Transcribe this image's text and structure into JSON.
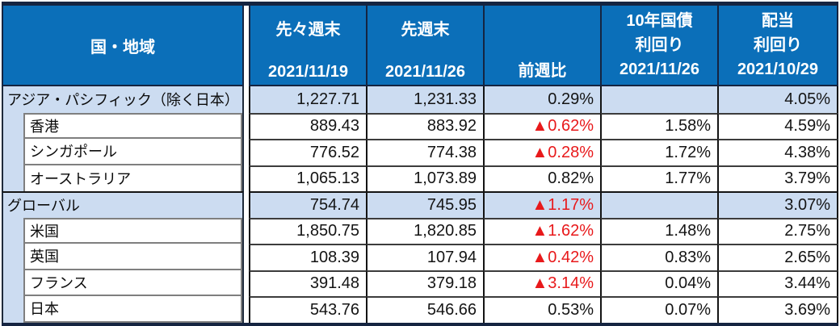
{
  "table": {
    "columns": [
      {
        "label": "国・地域"
      },
      {
        "label": "先々週末",
        "date": "2021/11/19"
      },
      {
        "label": "先週末",
        "date": "2021/11/26"
      },
      {
        "label": "前週比"
      },
      {
        "label": "10年国債",
        "label2": "利回り",
        "date": "2021/11/26"
      },
      {
        "label": "配当",
        "label2": "利回り",
        "date": "2021/10/29"
      }
    ],
    "rows": [
      {
        "type": "section",
        "name": "アジア・パシフィック（除く日本）",
        "week_before_last": "1,227.71",
        "last_week": "1,231.33",
        "week_over_week": "0.29%",
        "week_over_week_negative": false,
        "bond_yield_10y": "",
        "dividend_yield": "4.05%"
      },
      {
        "type": "sub",
        "name": "香港",
        "week_before_last": "889.43",
        "last_week": "883.92",
        "week_over_week": "▲0.62%",
        "week_over_week_negative": true,
        "bond_yield_10y": "1.58%",
        "dividend_yield": "4.59%"
      },
      {
        "type": "sub",
        "name": "シンガポール",
        "week_before_last": "776.52",
        "last_week": "774.38",
        "week_over_week": "▲0.28%",
        "week_over_week_negative": true,
        "bond_yield_10y": "1.72%",
        "dividend_yield": "4.38%"
      },
      {
        "type": "sub",
        "name": "オーストラリア",
        "week_before_last": "1,065.13",
        "last_week": "1,073.89",
        "week_over_week": "0.82%",
        "week_over_week_negative": false,
        "bond_yield_10y": "1.77%",
        "dividend_yield": "3.79%"
      },
      {
        "type": "section",
        "name": "グローバル",
        "week_before_last": "754.74",
        "last_week": "745.95",
        "week_over_week": "▲1.17%",
        "week_over_week_negative": true,
        "bond_yield_10y": "",
        "dividend_yield": "3.07%"
      },
      {
        "type": "sub",
        "name": "米国",
        "week_before_last": "1,850.75",
        "last_week": "1,820.85",
        "week_over_week": "▲1.62%",
        "week_over_week_negative": true,
        "bond_yield_10y": "1.48%",
        "dividend_yield": "2.75%"
      },
      {
        "type": "sub",
        "name": "英国",
        "week_before_last": "108.39",
        "last_week": "107.94",
        "week_over_week": "▲0.42%",
        "week_over_week_negative": true,
        "bond_yield_10y": "0.83%",
        "dividend_yield": "2.65%"
      },
      {
        "type": "sub",
        "name": "フランス",
        "week_before_last": "391.48",
        "last_week": "379.18",
        "week_over_week": "▲3.14%",
        "week_over_week_negative": true,
        "bond_yield_10y": "0.04%",
        "dividend_yield": "3.44%"
      },
      {
        "type": "sub",
        "name": "日本",
        "week_before_last": "543.76",
        "last_week": "546.66",
        "week_over_week": "0.53%",
        "week_over_week_negative": false,
        "bond_yield_10y": "0.07%",
        "dividend_yield": "3.69%"
      }
    ]
  },
  "colors": {
    "header_bg": "#0b6fb9",
    "section_row_bg": "#ccdcf1",
    "negative_value": "#e8191b",
    "frame_navy": "#152441"
  }
}
